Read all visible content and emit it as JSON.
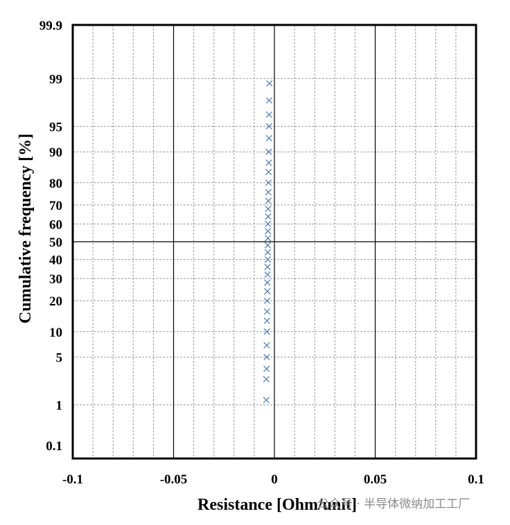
{
  "chart_data": {
    "type": "scatter",
    "xlabel": "Resistance [Ohm/unit]",
    "ylabel": "Cumulative frequency [%]",
    "xlim": [
      -0.1,
      0.1
    ],
    "ylim": [
      0.1,
      99.9
    ],
    "y_scale": "normal-probability",
    "x_ticks": [
      -0.1,
      -0.05,
      0,
      0.05,
      0.1
    ],
    "x_tick_labels": [
      "-0.1",
      "-0.05",
      "0",
      "0.05",
      "0.1"
    ],
    "y_ticks": [
      0.1,
      1,
      5,
      10,
      20,
      30,
      40,
      50,
      60,
      70,
      80,
      90,
      95,
      99,
      99.9
    ],
    "y_tick_labels": [
      "0.1",
      "1",
      "5",
      "10",
      "20",
      "30",
      "40",
      "50",
      "60",
      "70",
      "80",
      "90",
      "95",
      "99",
      "99.9"
    ],
    "grid": true,
    "marker": "x",
    "marker_color": "#4f81bd",
    "series": [
      {
        "values": [
          {
            "x": -0.004,
            "y": 1.2
          },
          {
            "x": -0.004,
            "y": 2.5
          },
          {
            "x": -0.0039,
            "y": 3.5
          },
          {
            "x": -0.0038,
            "y": 5.0
          },
          {
            "x": -0.0038,
            "y": 7.0
          },
          {
            "x": -0.0037,
            "y": 10.0
          },
          {
            "x": -0.0037,
            "y": 13.0
          },
          {
            "x": -0.0036,
            "y": 16.0
          },
          {
            "x": -0.0036,
            "y": 20.0
          },
          {
            "x": -0.0035,
            "y": 24.0
          },
          {
            "x": -0.0035,
            "y": 28.0
          },
          {
            "x": -0.0034,
            "y": 32.0
          },
          {
            "x": -0.0034,
            "y": 36.0
          },
          {
            "x": -0.0033,
            "y": 40.0
          },
          {
            "x": -0.0033,
            "y": 44.0
          },
          {
            "x": -0.0033,
            "y": 48.0
          },
          {
            "x": -0.0032,
            "y": 52.0
          },
          {
            "x": -0.0032,
            "y": 56.0
          },
          {
            "x": -0.0032,
            "y": 60.0
          },
          {
            "x": -0.0031,
            "y": 64.0
          },
          {
            "x": -0.0031,
            "y": 68.0
          },
          {
            "x": -0.003,
            "y": 72.0
          },
          {
            "x": -0.003,
            "y": 76.0
          },
          {
            "x": -0.0029,
            "y": 80.0
          },
          {
            "x": -0.0029,
            "y": 84.0
          },
          {
            "x": -0.0028,
            "y": 87.0
          },
          {
            "x": -0.0028,
            "y": 90.0
          },
          {
            "x": -0.0027,
            "y": 93.0
          },
          {
            "x": -0.0027,
            "y": 95.0
          },
          {
            "x": -0.0026,
            "y": 96.5
          },
          {
            "x": -0.0026,
            "y": 97.8
          },
          {
            "x": -0.0025,
            "y": 98.8
          }
        ]
      }
    ]
  },
  "watermark": "公众号 · 半导体微纳加工工厂"
}
